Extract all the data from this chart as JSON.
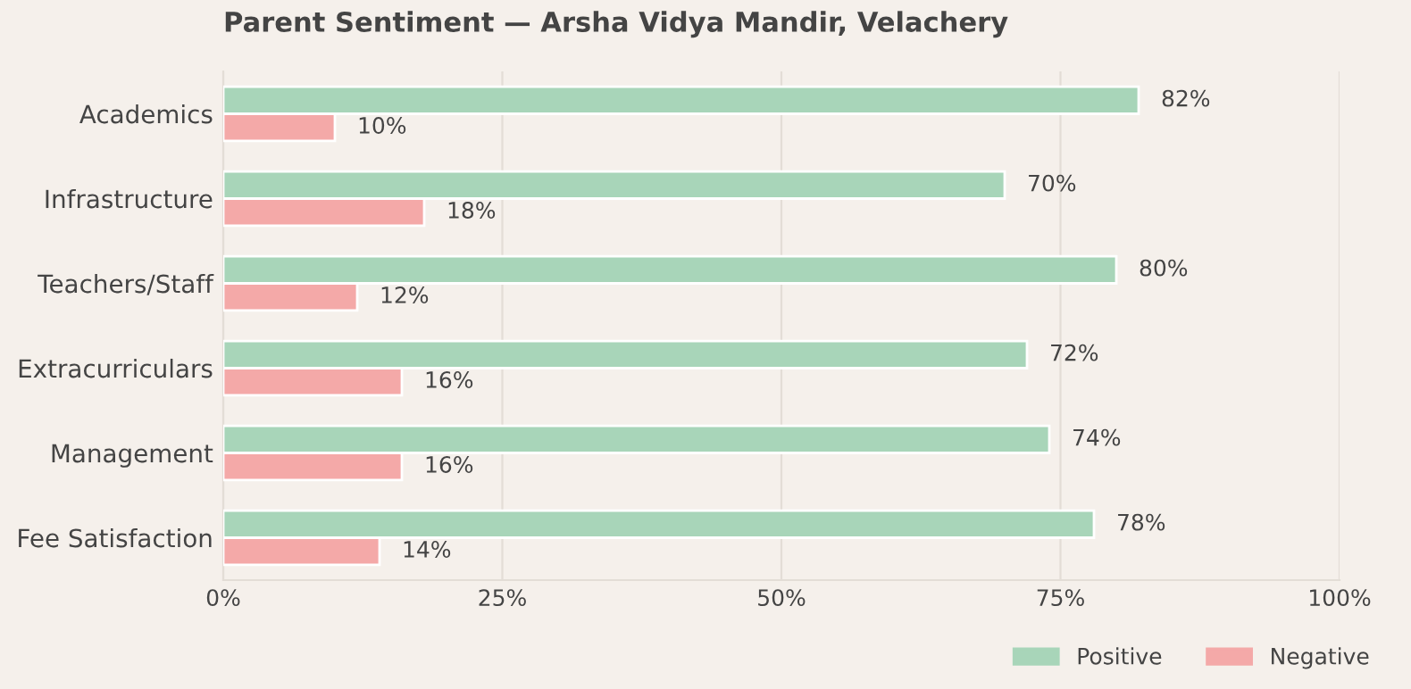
{
  "chart_data": {
    "type": "bar",
    "orientation": "horizontal",
    "title": "Parent Sentiment — Arsha Vidya Mandir, Velachery",
    "categories": [
      "Academics",
      "Infrastructure",
      "Teachers/Staff",
      "Extracurriculars",
      "Management",
      "Fee Satisfaction"
    ],
    "series": [
      {
        "name": "Positive",
        "color": "#a8d5b9",
        "values": [
          82,
          70,
          80,
          72,
          74,
          78
        ],
        "value_labels": [
          "82%",
          "70%",
          "80%",
          "72%",
          "74%",
          "78%"
        ]
      },
      {
        "name": "Negative",
        "color": "#f4a9a8",
        "values": [
          10,
          18,
          12,
          16,
          16,
          14
        ],
        "value_labels": [
          "10%",
          "18%",
          "12%",
          "16%",
          "16%",
          "14%"
        ]
      }
    ],
    "xlim": [
      0,
      100
    ],
    "xticks": [
      {
        "value": 0,
        "label": "0%"
      },
      {
        "value": 25,
        "label": "25%"
      },
      {
        "value": 50,
        "label": "50%"
      },
      {
        "value": 75,
        "label": "75%"
      },
      {
        "value": 100,
        "label": "100%"
      }
    ],
    "grid": "x",
    "legend": "bottom right"
  }
}
